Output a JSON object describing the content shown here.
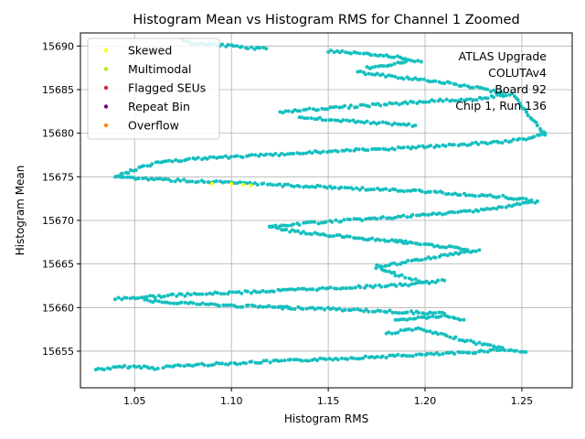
{
  "chart_data": {
    "type": "scatter",
    "title": "Histogram Mean vs Histogram RMS for Channel 1 Zoomed",
    "xlabel": "Histogram RMS",
    "ylabel": "Histogram Mean",
    "xlim": [
      1.022,
      1.276
    ],
    "ylim": [
      15650.8,
      15691.5
    ],
    "xticks": [
      1.05,
      1.1,
      1.15,
      1.2,
      1.25
    ],
    "xtick_labels": [
      "1.05",
      "1.10",
      "1.15",
      "1.20",
      "1.25"
    ],
    "yticks": [
      15655,
      15660,
      15665,
      15670,
      15675,
      15680,
      15685,
      15690
    ],
    "ytick_labels": [
      "15655",
      "15660",
      "15665",
      "15670",
      "15675",
      "15680",
      "15685",
      "15690"
    ],
    "grid": true,
    "legend_position": "top-left",
    "legend": [
      {
        "label": "Skewed",
        "color": "#ffff00"
      },
      {
        "label": "Multimodal",
        "color": "#aaee11"
      },
      {
        "label": "Flagged SEUs",
        "color": "#dd2233"
      },
      {
        "label": "Repeat Bin",
        "color": "#770077"
      },
      {
        "label": "Overflow",
        "color": "#ff8800"
      }
    ],
    "annotation": [
      "ATLAS Upgrade",
      "COLUTAv4",
      "Board 92",
      "Chip 1, Run 136"
    ],
    "main_color": "#17bfbf",
    "highlight_color": "#ffff00",
    "bands": [
      {
        "x": [
          1.03,
          1.045,
          1.055,
          1.062
        ],
        "y": [
          15652.9,
          15653.2,
          15653.2,
          15653.0
        ]
      },
      {
        "x": [
          1.065,
          1.08,
          1.1,
          1.12,
          1.14,
          1.16,
          1.18,
          1.2,
          1.22,
          1.24,
          1.252
        ],
        "y": [
          15653.2,
          15653.4,
          15653.6,
          15653.8,
          15654.0,
          15654.2,
          15654.4,
          15654.6,
          15654.8,
          15655.2,
          15654.9
        ]
      },
      {
        "x": [
          1.18,
          1.195,
          1.21,
          1.225,
          1.24
        ],
        "y": [
          15657.0,
          15657.6,
          15656.8,
          15656.0,
          15655.4
        ]
      },
      {
        "x": [
          1.185,
          1.195,
          1.21,
          1.22
        ],
        "y": [
          15658.5,
          15658.8,
          15659.0,
          15658.6
        ]
      },
      {
        "x": [
          1.04,
          1.055,
          1.07,
          1.09,
          1.11,
          1.13,
          1.15,
          1.17,
          1.19,
          1.21
        ],
        "y": [
          15661.0,
          15661.2,
          15661.4,
          15661.6,
          15661.8,
          15662.0,
          15662.2,
          15662.4,
          15662.6,
          15663.1
        ]
      },
      {
        "x": [
          1.055,
          1.07,
          1.085,
          1.1,
          1.115,
          1.13
        ],
        "y": [
          15660.8,
          15660.6,
          15660.4,
          15660.2,
          15660.1,
          15660.0
        ]
      },
      {
        "x": [
          1.125,
          1.145,
          1.165,
          1.185,
          1.2,
          1.21
        ],
        "y": [
          15660.0,
          15659.9,
          15659.7,
          15659.5,
          15659.4,
          15659.3
        ]
      },
      {
        "x": [
          1.175,
          1.18,
          1.185,
          1.19,
          1.195,
          1.2
        ],
        "y": [
          15664.8,
          15664.2,
          15663.8,
          15663.5,
          15663.2,
          15662.9
        ]
      },
      {
        "x": [
          1.175,
          1.19,
          1.2,
          1.21,
          1.22,
          1.228
        ],
        "y": [
          15664.6,
          15665.2,
          15665.6,
          15666.0,
          15666.3,
          15666.6
        ]
      },
      {
        "x": [
          1.185,
          1.195,
          1.205,
          1.215,
          1.222
        ],
        "y": [
          15667.6,
          15667.3,
          15667.1,
          15666.9,
          15666.6
        ]
      },
      {
        "x": [
          1.12,
          1.13,
          1.14,
          1.15,
          1.16,
          1.17,
          1.18,
          1.19
        ],
        "y": [
          15669.2,
          15668.8,
          15668.5,
          15668.3,
          15668.1,
          15667.9,
          15667.7,
          15667.6
        ]
      },
      {
        "x": [
          1.12,
          1.14,
          1.16,
          1.18,
          1.2,
          1.22,
          1.24,
          1.258
        ],
        "y": [
          15669.2,
          15669.7,
          15670.0,
          15670.3,
          15670.6,
          15671.0,
          15671.5,
          15672.2
        ]
      },
      {
        "x": [
          1.04,
          1.06,
          1.08,
          1.1,
          1.12,
          1.14,
          1.16,
          1.18,
          1.2,
          1.22,
          1.24,
          1.255
        ],
        "y": [
          15675.0,
          15674.7,
          15674.5,
          15674.3,
          15674.1,
          15673.9,
          15673.7,
          15673.5,
          15673.3,
          15673.0,
          15672.7,
          15672.3
        ]
      },
      {
        "x": [
          1.04,
          1.055,
          1.065,
          1.08,
          1.1,
          1.12,
          1.14,
          1.16,
          1.18,
          1.2,
          1.22,
          1.24,
          1.255,
          1.262
        ],
        "y": [
          15675.0,
          15676.2,
          15676.8,
          15677.0,
          15677.3,
          15677.5,
          15677.8,
          15678.0,
          15678.2,
          15678.4,
          15678.7,
          15679.0,
          15679.5,
          15680.0
        ]
      },
      {
        "x": [
          1.125,
          1.145,
          1.165,
          1.185,
          1.205,
          1.225,
          1.245,
          1.262
        ],
        "y": [
          15682.4,
          15682.8,
          15683.1,
          15683.4,
          15683.7,
          15683.9,
          15684.5,
          15679.8
        ]
      },
      {
        "x": [
          1.135,
          1.155,
          1.175,
          1.195
        ],
        "y": [
          15681.8,
          15681.5,
          15681.2,
          15680.9
        ]
      },
      {
        "x": [
          1.165,
          1.18,
          1.195,
          1.21,
          1.225,
          1.24
        ],
        "y": [
          15687.0,
          15686.6,
          15686.2,
          15685.8,
          15685.3,
          15684.6
        ]
      },
      {
        "x": [
          1.17,
          1.18,
          1.19
        ],
        "y": [
          15687.5,
          15687.8,
          15688.2
        ]
      },
      {
        "x": [
          1.15,
          1.165,
          1.18,
          1.19,
          1.198
        ],
        "y": [
          15689.4,
          15689.2,
          15688.9,
          15688.6,
          15688.2
        ]
      },
      {
        "x": [
          1.075,
          1.085,
          1.1,
          1.11,
          1.118
        ],
        "y": [
          15690.5,
          15690.2,
          15690.0,
          15689.8,
          15689.7
        ]
      }
    ],
    "highlight_points": {
      "x": [
        1.09,
        1.1,
        1.106,
        1.11
      ],
      "y": [
        15674.2,
        15674.2,
        15674.1,
        15674.0
      ]
    }
  }
}
